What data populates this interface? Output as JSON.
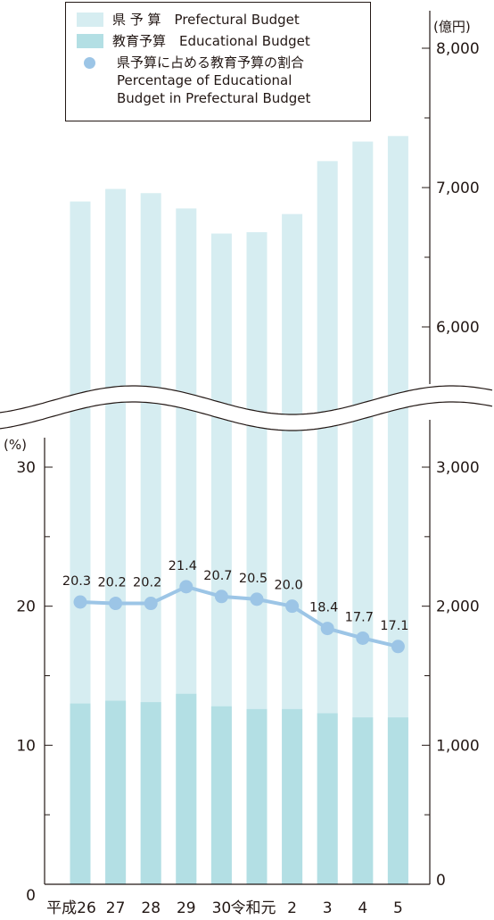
{
  "chart_data": {
    "type": "bar",
    "categories": [
      "平成26",
      "27",
      "28",
      "29",
      "30",
      "令和元",
      "2",
      "3",
      "4",
      "5"
    ],
    "series": [
      {
        "name": "県 予 算　Prefectural Budget",
        "axis": "right",
        "unit": "億円",
        "color": "#d6edf1",
        "values": [
          6900,
          6990,
          6960,
          6850,
          6670,
          6680,
          6810,
          7190,
          7330,
          7370
        ]
      },
      {
        "name": "教育予算　Educational Budget",
        "axis": "right",
        "unit": "億円",
        "color": "#b3dfe4",
        "values": [
          1300,
          1320,
          1310,
          1370,
          1280,
          1260,
          1260,
          1230,
          1200,
          1200
        ]
      },
      {
        "name": "県予算に占める教育予算の割合\nPercentage of Educational\nBudget in Prefectural Budget",
        "type": "line",
        "axis": "left",
        "unit": "%",
        "color": "#9cc5e6",
        "values": [
          20.3,
          20.2,
          20.2,
          21.4,
          20.7,
          20.5,
          20.0,
          18.4,
          17.7,
          17.1
        ],
        "labels": [
          "20.3",
          "20.2",
          "20.2",
          "21.4",
          "20.7",
          "20.5",
          "20.0",
          "18.4",
          "17.7",
          "17.1"
        ]
      }
    ],
    "y_left": {
      "unit_label": "(%)",
      "ticks": [
        0,
        10,
        20,
        30
      ],
      "tick_labels": [
        "0",
        "10",
        "20",
        "30"
      ],
      "ylim": [
        0,
        30
      ]
    },
    "y_right": {
      "unit_label": "(億円)",
      "broken_axis": true,
      "lower_range": [
        0,
        3000
      ],
      "upper_range": [
        5500,
        8000
      ],
      "ticks": [
        0,
        1000,
        2000,
        3000,
        6000,
        7000,
        8000
      ],
      "tick_labels": [
        "0",
        "1,000",
        "2,000",
        "3,000",
        "6,000",
        "7,000",
        "8,000"
      ]
    },
    "legend_position": "top-left",
    "grid": false
  }
}
